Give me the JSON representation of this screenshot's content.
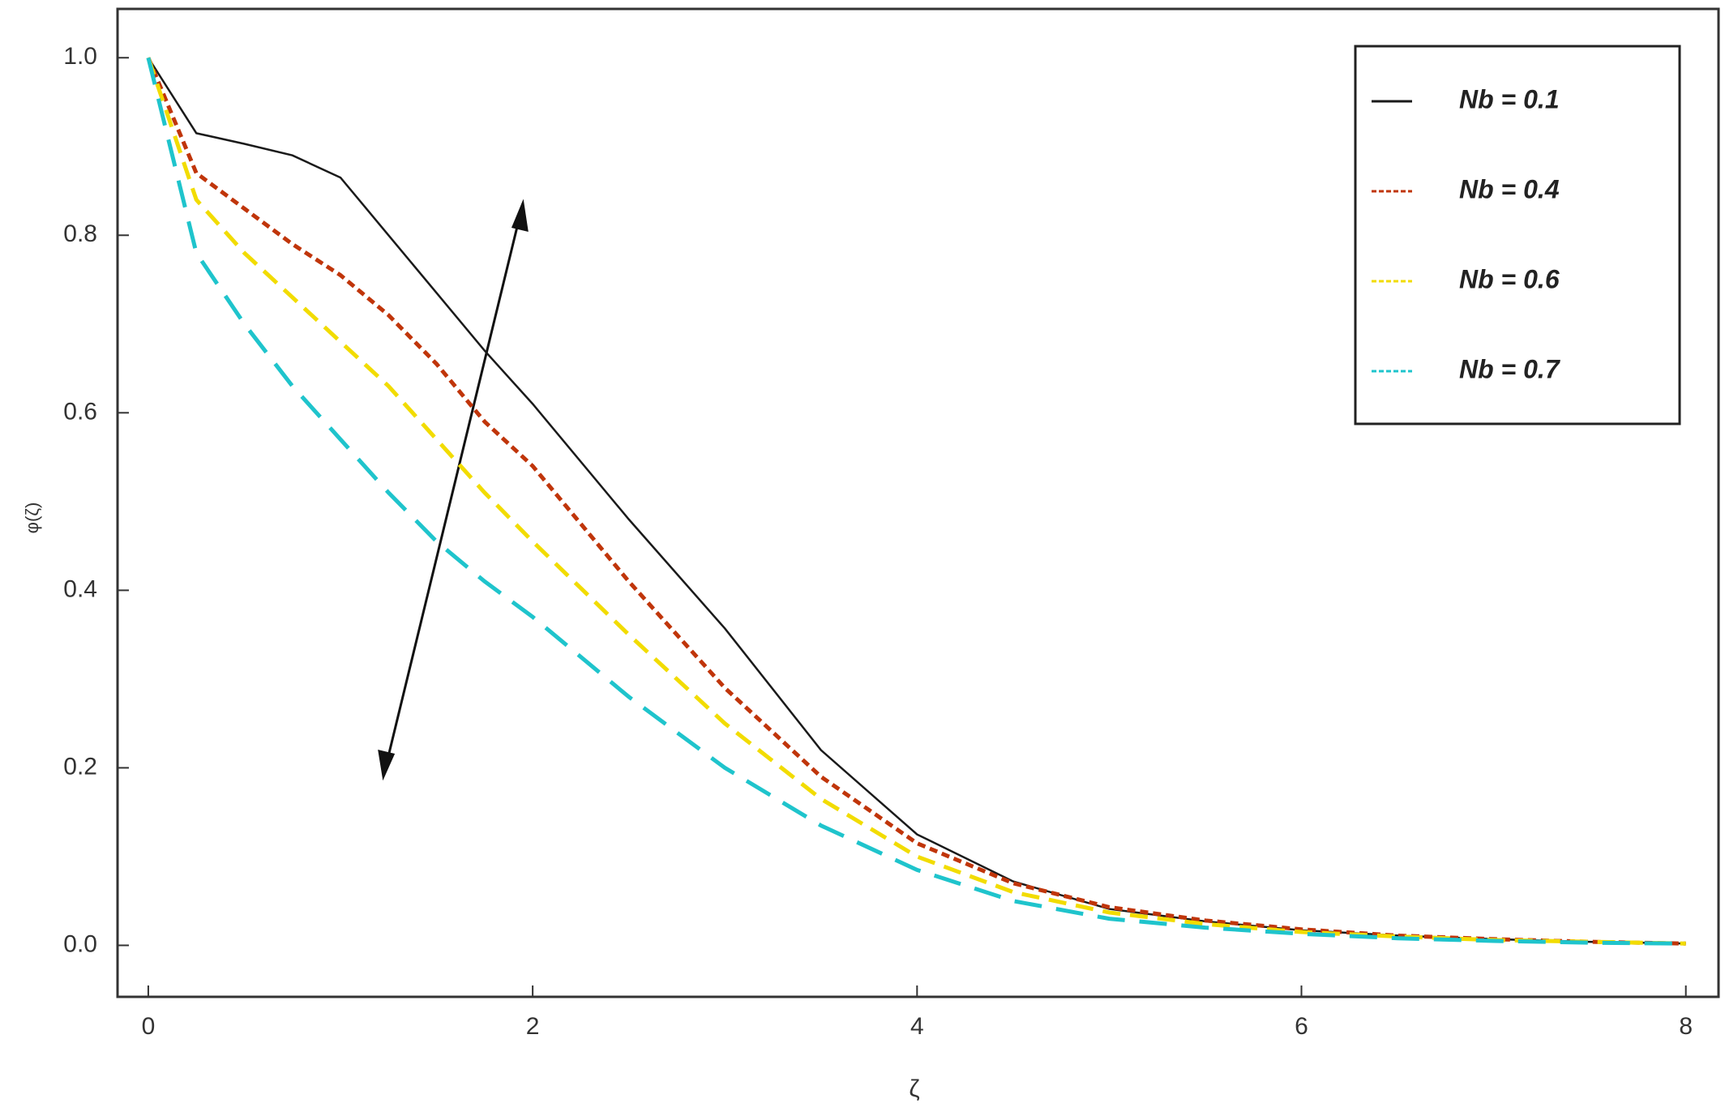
{
  "chart_data": {
    "type": "line",
    "xlabel": "ζ",
    "ylabel": "φ(ζ)",
    "x": [
      0,
      0.25,
      0.5,
      0.75,
      1,
      1.25,
      1.5,
      1.75,
      2,
      2.5,
      3,
      3.5,
      4,
      4.5,
      5,
      5.5,
      6,
      6.5,
      7,
      7.5,
      8
    ],
    "series": [
      {
        "name": "Nb = 0.1",
        "color": "#1a1a1a",
        "dash": "solid",
        "values": [
          1,
          0.915,
          0.903,
          0.89,
          0.865,
          0.8,
          0.735,
          0.67,
          0.61,
          0.48,
          0.357,
          0.22,
          0.125,
          0.072,
          0.041,
          0.027,
          0.017,
          0.011,
          0.007,
          0.004,
          0.002
        ]
      },
      {
        "name": "Nb = 0.4",
        "color": "#c0350a",
        "dash": "short",
        "values": [
          1,
          0.87,
          0.83,
          0.79,
          0.755,
          0.71,
          0.655,
          0.59,
          0.54,
          0.41,
          0.29,
          0.19,
          0.115,
          0.07,
          0.043,
          0.028,
          0.018,
          0.011,
          0.007,
          0.004,
          0.002
        ]
      },
      {
        "name": "Nb = 0.6",
        "color": "#f2dc00",
        "dash": "medium",
        "values": [
          1,
          0.84,
          0.78,
          0.73,
          0.68,
          0.63,
          0.57,
          0.51,
          0.455,
          0.35,
          0.25,
          0.165,
          0.1,
          0.06,
          0.037,
          0.024,
          0.015,
          0.01,
          0.006,
          0.004,
          0.002
        ]
      },
      {
        "name": "Nb = 0.7",
        "color": "#1fc4cc",
        "dash": "long",
        "values": [
          1,
          0.78,
          0.7,
          0.63,
          0.57,
          0.51,
          0.455,
          0.41,
          0.37,
          0.28,
          0.2,
          0.135,
          0.085,
          0.05,
          0.03,
          0.02,
          0.013,
          0.008,
          0.005,
          0.003,
          0.002
        ]
      }
    ],
    "xlim": [
      -0.16,
      8.17
    ],
    "ylim": [
      -0.058,
      1.055
    ],
    "xticks": [
      0,
      2,
      4,
      6,
      8
    ],
    "yticks": [
      {
        "value": 0,
        "label": "0.0"
      },
      0.2,
      0.4,
      0.6,
      0.8,
      {
        "value": 1,
        "label": "1.0"
      }
    ],
    "legend": "upper right",
    "grid": false
  }
}
